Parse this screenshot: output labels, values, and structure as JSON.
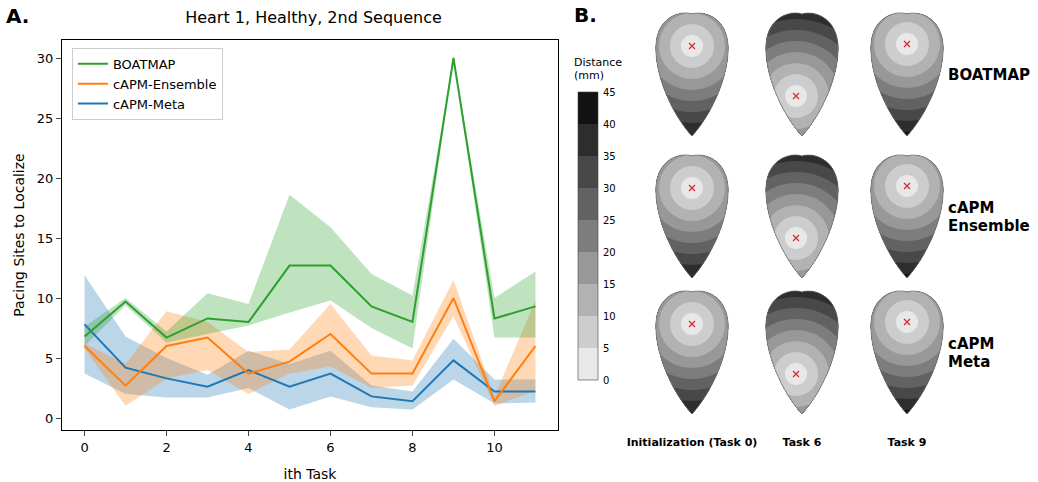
{
  "chart_data": {
    "type": "line",
    "panel_label": "A.",
    "title": "Heart 1, Healthy, 2nd Sequence",
    "x_label": "ith Task",
    "y_label": "Pacing Sites to Localize",
    "x": [
      0,
      1,
      2,
      3,
      4,
      5,
      6,
      7,
      8,
      9,
      10,
      11
    ],
    "series": [
      {
        "name": "cAPM-Meta",
        "color": "#1f77b4",
        "values": [
          7.8,
          4.2,
          3.3,
          2.6,
          4.0,
          2.6,
          3.7,
          1.8,
          1.4,
          4.8,
          2.2,
          2.2
        ],
        "lower": [
          3.7,
          2.0,
          1.7,
          1.7,
          2.5,
          0.7,
          1.8,
          0.9,
          0.7,
          3.2,
          1.2,
          1.3
        ],
        "upper": [
          11.9,
          6.8,
          5.0,
          3.6,
          5.6,
          4.5,
          5.6,
          2.7,
          2.2,
          6.6,
          3.2,
          3.2
        ]
      },
      {
        "name": "cAPM-Ensemble",
        "color": "#ff7f0e",
        "values": [
          6.0,
          2.7,
          6.0,
          6.7,
          3.7,
          4.7,
          7.0,
          3.7,
          3.7,
          10.0,
          1.4,
          6.0
        ],
        "lower": [
          5.8,
          1.0,
          3.3,
          4.0,
          2.0,
          3.7,
          4.3,
          2.5,
          2.7,
          8.5,
          1.0,
          2.3
        ],
        "upper": [
          6.2,
          4.5,
          8.9,
          8.0,
          5.5,
          5.7,
          9.5,
          5.2,
          4.8,
          11.5,
          1.8,
          9.8
        ]
      },
      {
        "name": "BOATMAP",
        "color": "#2ca02c",
        "values": [
          6.8,
          9.7,
          6.7,
          8.3,
          8.0,
          12.7,
          12.7,
          9.3,
          8.0,
          30,
          8.3,
          9.3
        ],
        "lower": [
          6.0,
          9.4,
          6.3,
          7.0,
          7.7,
          8.8,
          9.8,
          7.5,
          5.8,
          30,
          6.7,
          6.7
        ],
        "upper": [
          7.6,
          10.0,
          7.2,
          10.4,
          9.5,
          18.6,
          15.9,
          12.0,
          10.2,
          30,
          10.0,
          12.2
        ]
      }
    ],
    "xlim": [
      -0.55,
      11.55
    ],
    "ylim": [
      -1,
      31.5
    ],
    "xticks": [
      0,
      2,
      4,
      6,
      8,
      10
    ],
    "yticks": [
      0,
      5,
      10,
      15,
      20,
      25,
      30
    ],
    "grid": false,
    "legend": "upper left"
  },
  "panel_b": {
    "panel_label": "B.",
    "colorbar": {
      "title": "Distance (mm)",
      "range": [
        0,
        45
      ],
      "ticks": [
        0,
        5,
        10,
        15,
        20,
        25,
        30,
        35,
        40,
        45
      ]
    },
    "rows": [
      "BOATMAP",
      "cAPM Ensemble",
      "cAPM Meta"
    ],
    "columns": [
      "Initialization (Task 0)",
      "Task 6",
      "Task 9"
    ]
  }
}
